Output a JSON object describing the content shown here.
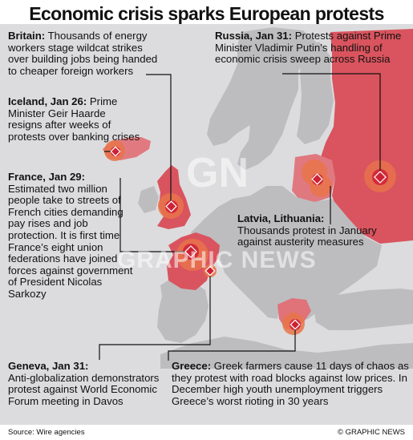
{
  "title": "Economic crisis sparks European protests",
  "captions": {
    "britain": {
      "heading": "Britain:",
      "text": "Thousands of energy workers stage wildcat strikes over building jobs being handed to cheaper foreign workers"
    },
    "iceland": {
      "heading": "Iceland, Jan 26:",
      "text": "Prime Minister Geir Haarde resigns after weeks of protests over banking crises"
    },
    "france": {
      "heading": "France, Jan 29:",
      "text": "Estimated two million people take to streets of French cities demanding pay rises and job protection. It is first time France’s eight union federations have joined forces against government of President Nicolas Sarkozy"
    },
    "russia": {
      "heading": "Russia, Jan 31:",
      "text": "Protests against Prime Minister Vladimir Putin’s handling of economic crisis sweep across Russia"
    },
    "latvia": {
      "heading": "Latvia, Lithuania:",
      "text": "Thousands protest in January against austerity measures"
    },
    "geneva": {
      "heading": "Geneva, Jan 31:",
      "text": "Anti-globalization demonstrators protest against World Economic Forum meeting in Davos"
    },
    "greece": {
      "heading": "Greece:",
      "text": "Greek farmers cause 11 days of chaos as they protest with road blocks against low prices. In December high youth unemployment triggers Greece’s worst rioting in 30 years"
    }
  },
  "watermark": {
    "logo": "GN",
    "text": "GRAPHIC NEWS"
  },
  "source": "Source: Wire agencies",
  "credit": "© GRAPHIC NEWS",
  "colors": {
    "sea": "#dcdcde",
    "land": "#bdbdc0",
    "protest_country": "#d9545e",
    "protest_country_light": "#ea9aa0",
    "hotspot_outer": "#e8744a",
    "hotspot_inner": "#d42a3a",
    "marker": "#cc2233",
    "pointer_line": "#111111"
  }
}
